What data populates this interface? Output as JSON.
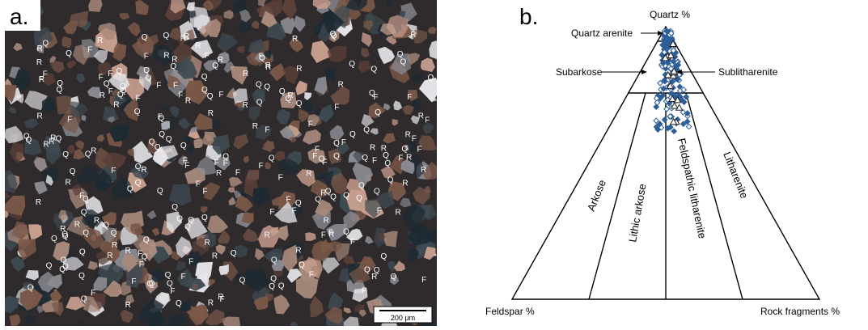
{
  "panel_a": {
    "label": "a.",
    "scale_bar": "200 μm",
    "grain_codes": {
      "quartz": "Q",
      "feldspar": "F",
      "rock_fragment": "R"
    },
    "colors": {
      "background": "#2f2a2c",
      "dark_matrix": "#1d2a33",
      "brown": "#7a5848",
      "gray": "#8a8b92",
      "white_grain": "#e6e6ea",
      "pink": "#c9a08f"
    }
  },
  "panel_b": {
    "label": "b.",
    "apex_top": "Quartz %",
    "apex_left": "Feldspar %",
    "apex_right": "Rock fragments %",
    "fields": {
      "quartz_arenite": "Quartz arenite",
      "subarkose": "Subarkose",
      "sublitharenite": "Sublitharenite",
      "arkose": "Arkose",
      "lithic_arkose": "Lithic arkose",
      "feldspathic_litharenite": "Feldspathic litharenite",
      "litharenite": "Litharenite"
    },
    "colors": {
      "lines": "#000000",
      "diamond_points": "#2e5e97",
      "triangle_points": "#222222"
    }
  }
}
